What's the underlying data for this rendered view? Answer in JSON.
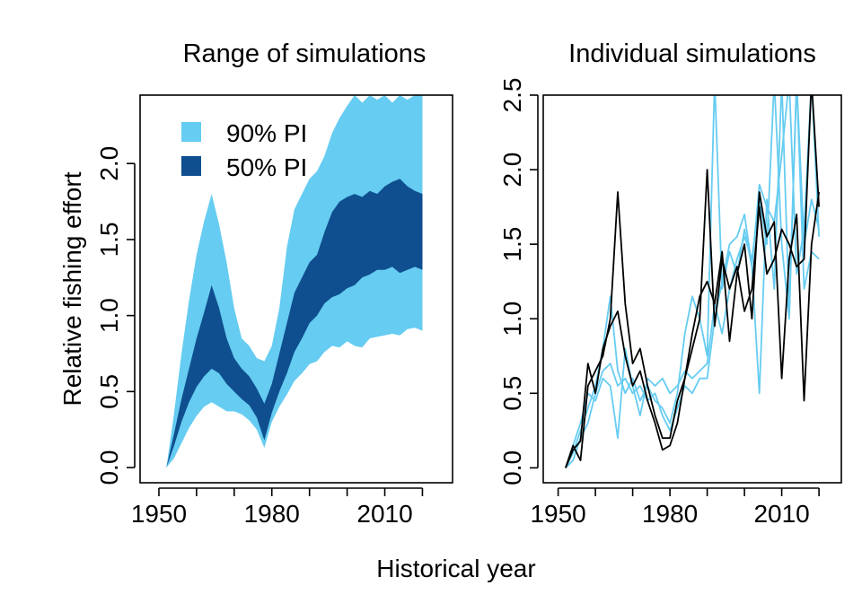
{
  "figure": {
    "xlabel": "Historical year",
    "ylabel": "Relative fishing effort",
    "colors": {
      "pi90": "#66ccf1",
      "pi50": "#0f4f8f",
      "sim_light": "#66ccf1",
      "sim_dark": "#000000"
    }
  },
  "chart_data": [
    {
      "type": "area",
      "title": "Range of simulations",
      "xlabel": "",
      "ylabel": "Relative fishing effort",
      "xlim": [
        1950,
        2020
      ],
      "ylim": [
        0,
        2.45
      ],
      "xticks": [
        "1950",
        "1980",
        "2010"
      ],
      "yticks": [
        "0.0",
        "0.5",
        "1.0",
        "1.5",
        "2.0"
      ],
      "legend_position": "top-left",
      "legend": [
        {
          "label": "90% PI",
          "color": "#66ccf1"
        },
        {
          "label": "50% PI",
          "color": "#0f4f8f"
        }
      ],
      "x": [
        1952,
        1954,
        1956,
        1958,
        1960,
        1962,
        1964,
        1966,
        1968,
        1970,
        1972,
        1974,
        1976,
        1978,
        1980,
        1982,
        1984,
        1986,
        1988,
        1990,
        1992,
        1994,
        1996,
        1998,
        2000,
        2002,
        2004,
        2006,
        2008,
        2010,
        2012,
        2014,
        2016,
        2018,
        2020
      ],
      "series": [
        {
          "name": "90% PI",
          "lower": [
            0.0,
            0.06,
            0.16,
            0.26,
            0.34,
            0.4,
            0.43,
            0.4,
            0.37,
            0.37,
            0.35,
            0.31,
            0.25,
            0.13,
            0.3,
            0.4,
            0.48,
            0.57,
            0.62,
            0.68,
            0.7,
            0.76,
            0.8,
            0.79,
            0.83,
            0.8,
            0.79,
            0.85,
            0.86,
            0.87,
            0.88,
            0.87,
            0.91,
            0.92,
            0.9
          ],
          "upper": [
            0.0,
            0.35,
            0.75,
            1.1,
            1.4,
            1.62,
            1.8,
            1.6,
            1.35,
            1.05,
            0.85,
            0.8,
            0.72,
            0.7,
            0.8,
            1.05,
            1.45,
            1.7,
            1.8,
            1.9,
            1.95,
            2.05,
            2.2,
            2.3,
            2.38,
            2.45,
            2.4,
            2.45,
            2.42,
            2.45,
            2.4,
            2.45,
            2.42,
            2.45,
            2.45
          ]
        },
        {
          "name": "50% PI",
          "lower": [
            0.0,
            0.14,
            0.3,
            0.43,
            0.53,
            0.6,
            0.65,
            0.62,
            0.55,
            0.5,
            0.45,
            0.41,
            0.33,
            0.18,
            0.36,
            0.5,
            0.62,
            0.76,
            0.85,
            0.95,
            1.0,
            1.08,
            1.12,
            1.14,
            1.18,
            1.2,
            1.25,
            1.27,
            1.3,
            1.3,
            1.32,
            1.28,
            1.3,
            1.32,
            1.3
          ],
          "upper": [
            0.0,
            0.22,
            0.45,
            0.65,
            0.85,
            1.02,
            1.2,
            1.05,
            0.85,
            0.72,
            0.65,
            0.6,
            0.52,
            0.42,
            0.55,
            0.75,
            0.95,
            1.15,
            1.25,
            1.35,
            1.4,
            1.55,
            1.68,
            1.75,
            1.78,
            1.8,
            1.78,
            1.82,
            1.8,
            1.85,
            1.88,
            1.9,
            1.85,
            1.82,
            1.8
          ]
        }
      ]
    },
    {
      "type": "line",
      "title": "Individual simulations",
      "xlabel": "",
      "ylabel": "",
      "xlim": [
        1950,
        2020
      ],
      "ylim": [
        0,
        2.5
      ],
      "xticks": [
        "1950",
        "1980",
        "2010"
      ],
      "yticks": [
        "0.0",
        "0.5",
        "1.0",
        "1.5",
        "2.0",
        "2.5"
      ],
      "x": [
        1952,
        1954,
        1956,
        1958,
        1960,
        1962,
        1964,
        1966,
        1968,
        1970,
        1972,
        1974,
        1976,
        1978,
        1980,
        1982,
        1984,
        1986,
        1988,
        1990,
        1992,
        1994,
        1996,
        1998,
        2000,
        2002,
        2004,
        2006,
        2008,
        2010,
        2012,
        2014,
        2016,
        2018,
        2020
      ],
      "series": [
        {
          "color": "#66ccf1",
          "values": [
            0.0,
            0.1,
            0.25,
            0.4,
            0.55,
            0.8,
            1.15,
            0.65,
            0.5,
            0.6,
            0.45,
            0.55,
            0.45,
            0.4,
            0.3,
            0.5,
            0.9,
            1.15,
            1.0,
            0.75,
            2.6,
            1.2,
            1.45,
            1.3,
            1.6,
            1.35,
            0.5,
            1.8,
            1.2,
            2.6,
            1.05,
            2.6,
            1.5,
            1.8,
            1.6
          ]
        },
        {
          "color": "#66ccf1",
          "values": [
            0.0,
            0.15,
            0.3,
            0.5,
            0.45,
            0.6,
            0.55,
            0.2,
            0.8,
            0.55,
            0.35,
            0.6,
            0.55,
            0.6,
            0.5,
            0.55,
            0.65,
            0.6,
            0.65,
            0.7,
            1.1,
            0.9,
            1.2,
            1.4,
            1.55,
            1.4,
            1.8,
            1.5,
            2.6,
            1.5,
            1.0,
            2.6,
            1.2,
            1.45,
            1.4
          ]
        },
        {
          "color": "#66ccf1",
          "values": [
            0.0,
            0.05,
            0.2,
            0.3,
            0.5,
            0.65,
            0.7,
            0.55,
            0.6,
            0.5,
            0.55,
            0.45,
            0.5,
            0.35,
            0.25,
            0.4,
            0.55,
            0.5,
            0.6,
            0.6,
            1.0,
            1.25,
            1.5,
            1.55,
            1.7,
            1.35,
            1.9,
            1.75,
            1.65,
            2.1,
            2.6,
            1.3,
            1.6,
            2.6,
            1.55
          ]
        },
        {
          "color": "#000000",
          "values": [
            0.0,
            0.12,
            0.18,
            0.7,
            0.5,
            0.8,
            0.95,
            1.05,
            0.75,
            0.55,
            0.65,
            0.45,
            0.3,
            0.12,
            0.15,
            0.3,
            0.6,
            0.8,
            1.0,
            2.0,
            0.95,
            1.4,
            1.2,
            1.35,
            1.05,
            1.2,
            1.75,
            1.3,
            1.4,
            1.6,
            1.5,
            1.35,
            1.4,
            2.6,
            1.75
          ]
        },
        {
          "color": "#000000",
          "values": [
            0.0,
            0.15,
            0.05,
            0.55,
            0.65,
            0.75,
            1.0,
            1.85,
            1.1,
            0.7,
            0.8,
            0.55,
            0.35,
            0.2,
            0.2,
            0.45,
            0.6,
            0.9,
            1.15,
            1.25,
            1.1,
            1.45,
            0.85,
            1.3,
            1.5,
            1.0,
            1.85,
            1.55,
            1.65,
            0.6,
            1.4,
            1.7,
            0.45,
            1.5,
            1.85
          ]
        }
      ]
    }
  ]
}
